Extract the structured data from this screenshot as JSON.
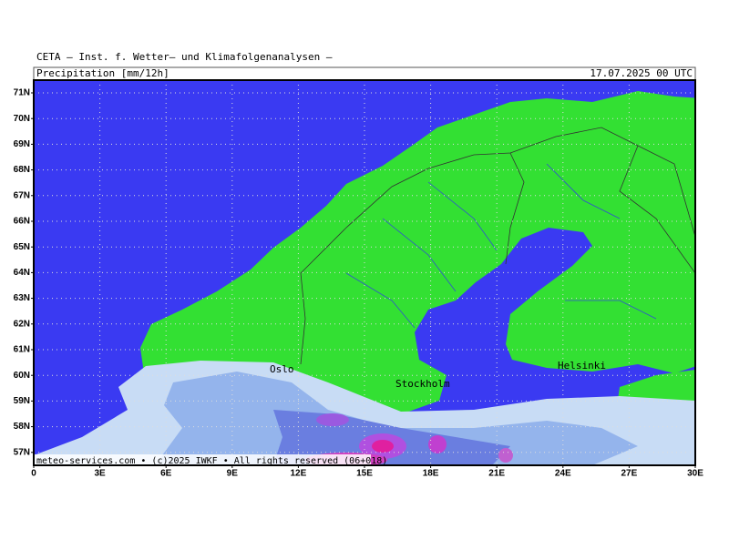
{
  "header": {
    "title": "CETA — Inst. f. Wetter— und Klimafolgenanalysen —",
    "product": "Precipitation [mm/12h]",
    "valid_time": "17.07.2025 00 UTC"
  },
  "map": {
    "lat_ticks": [
      {
        "value": 71,
        "label": "71N"
      },
      {
        "value": 70,
        "label": "70N"
      },
      {
        "value": 69,
        "label": "69N"
      },
      {
        "value": 68,
        "label": "68N"
      },
      {
        "value": 67,
        "label": "67N"
      },
      {
        "value": 66,
        "label": "66N"
      },
      {
        "value": 65,
        "label": "65N"
      },
      {
        "value": 64,
        "label": "64N"
      },
      {
        "value": 63,
        "label": "63N"
      },
      {
        "value": 62,
        "label": "62N"
      },
      {
        "value": 61,
        "label": "61N"
      },
      {
        "value": 60,
        "label": "60N"
      },
      {
        "value": 59,
        "label": "59N"
      },
      {
        "value": 58,
        "label": "58N"
      },
      {
        "value": 57,
        "label": "57N"
      }
    ],
    "lon_ticks": [
      0,
      {
        "value": 3,
        "label": "3E"
      },
      {
        "value": 6,
        "label": "6E"
      },
      {
        "value": 9,
        "label": "9E"
      },
      {
        "value": 12,
        "label": "12E"
      },
      {
        "value": 15,
        "label": "15E"
      },
      {
        "value": 18,
        "label": "18E"
      },
      {
        "value": 21,
        "label": "21E"
      },
      {
        "value": 24,
        "label": "24E"
      },
      {
        "value": 27,
        "label": "27E"
      },
      {
        "value": 30,
        "label": "30E"
      }
    ],
    "cities": [
      "Oslo",
      "Stockholm",
      "Helsinki"
    ]
  },
  "footer": "meteo-services.com • (c)2025 IWKF • All rights reserved (06+018)"
}
